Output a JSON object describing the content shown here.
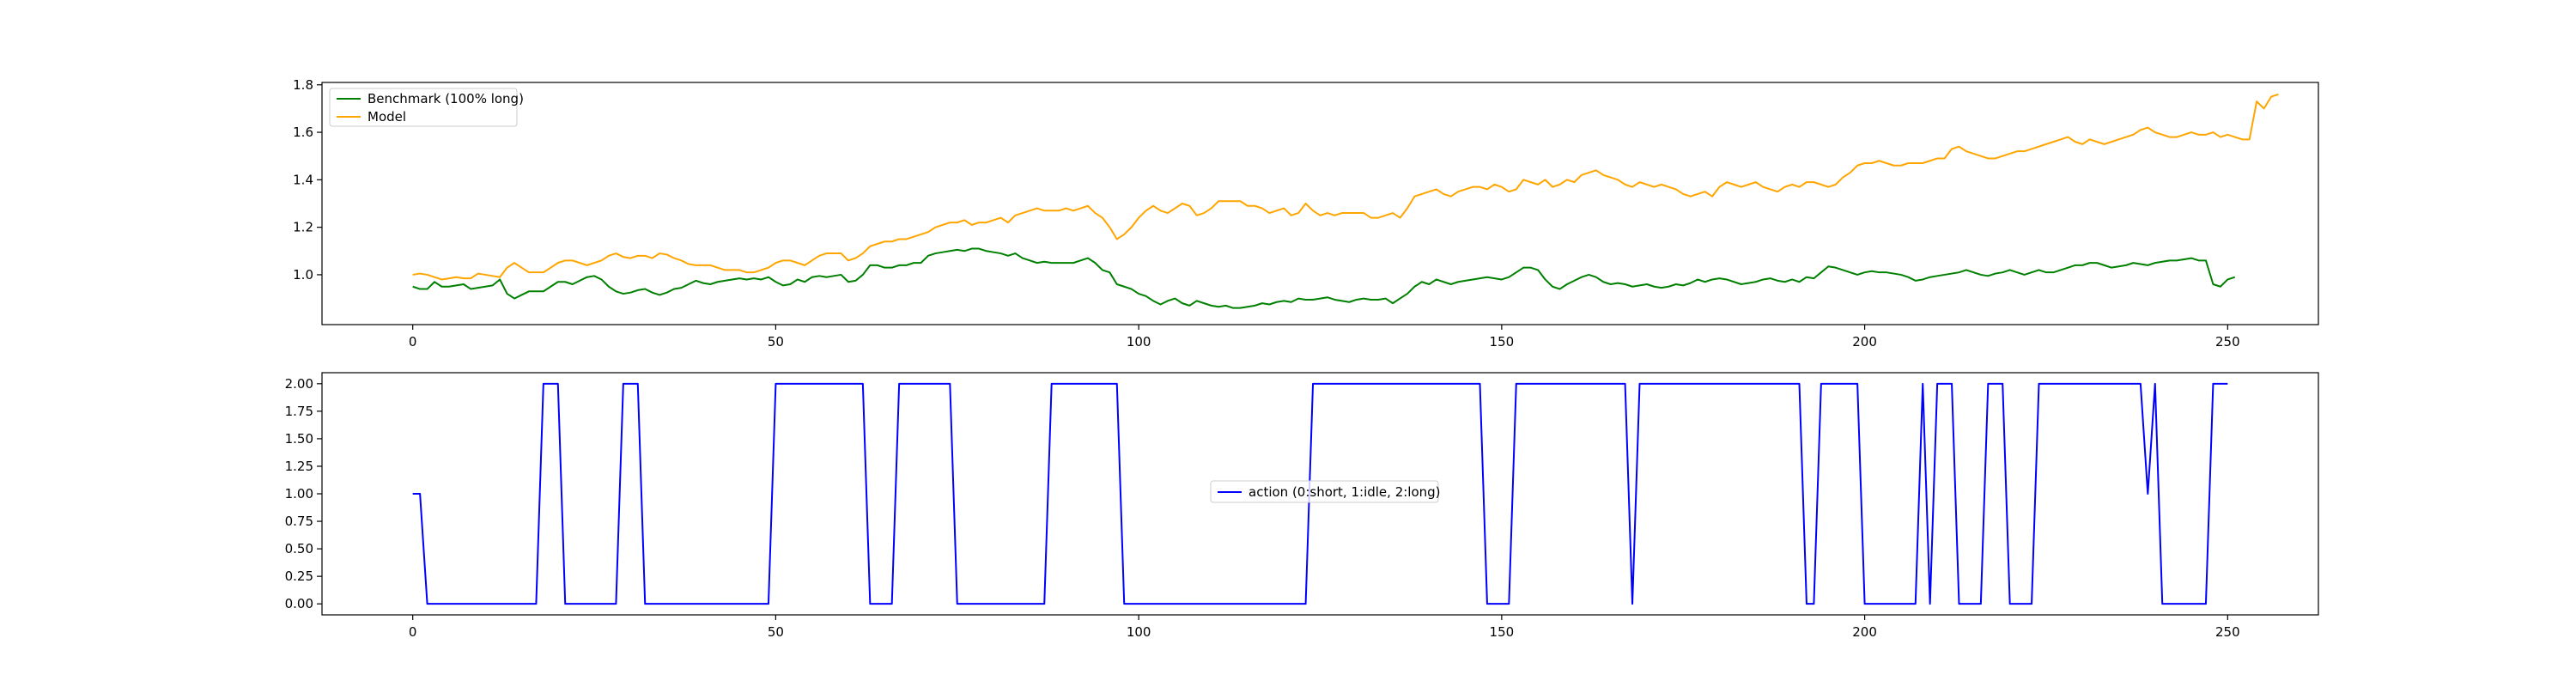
{
  "chart_data": [
    {
      "type": "line",
      "title": "",
      "xlabel": "",
      "ylabel": "",
      "xlim": [
        -12.5,
        262.5
      ],
      "ylim": [
        0.79,
        1.81
      ],
      "xticks": [
        0,
        50,
        100,
        150,
        200,
        250
      ],
      "yticks": [
        1.0,
        1.2,
        1.4,
        1.6,
        1.8
      ],
      "ytick_format": 1,
      "grid": false,
      "legend_position": "upper-left",
      "x_step": 1,
      "series": [
        {
          "name": "Benchmark (100% long)",
          "color": "#008000",
          "values": [
            0.95,
            0.94,
            0.94,
            0.97,
            0.95,
            0.95,
            0.955,
            0.96,
            0.94,
            0.945,
            0.95,
            0.955,
            0.98,
            0.92,
            0.9,
            0.915,
            0.93,
            0.93,
            0.93,
            0.95,
            0.97,
            0.97,
            0.96,
            0.975,
            0.99,
            0.995,
            0.98,
            0.95,
            0.93,
            0.92,
            0.925,
            0.935,
            0.94,
            0.925,
            0.915,
            0.925,
            0.94,
            0.945,
            0.96,
            0.975,
            0.965,
            0.96,
            0.97,
            0.975,
            0.98,
            0.985,
            0.98,
            0.985,
            0.98,
            0.99,
            0.97,
            0.955,
            0.96,
            0.98,
            0.97,
            0.99,
            0.995,
            0.99,
            0.995,
            1.0,
            0.97,
            0.975,
            1.0,
            1.04,
            1.04,
            1.03,
            1.03,
            1.04,
            1.04,
            1.05,
            1.05,
            1.08,
            1.09,
            1.095,
            1.1,
            1.105,
            1.1,
            1.11,
            1.11,
            1.1,
            1.095,
            1.09,
            1.08,
            1.09,
            1.07,
            1.06,
            1.05,
            1.055,
            1.05,
            1.05,
            1.05,
            1.05,
            1.06,
            1.07,
            1.05,
            1.02,
            1.01,
            0.96,
            0.95,
            0.94,
            0.92,
            0.91,
            0.89,
            0.875,
            0.89,
            0.9,
            0.88,
            0.87,
            0.89,
            0.88,
            0.87,
            0.865,
            0.87,
            0.86,
            0.86,
            0.865,
            0.87,
            0.88,
            0.875,
            0.885,
            0.89,
            0.885,
            0.9,
            0.895,
            0.895,
            0.9,
            0.905,
            0.895,
            0.89,
            0.885,
            0.895,
            0.9,
            0.895,
            0.895,
            0.9,
            0.88,
            0.9,
            0.92,
            0.95,
            0.97,
            0.96,
            0.98,
            0.97,
            0.96,
            0.97,
            0.975,
            0.98,
            0.985,
            0.99,
            0.985,
            0.98,
            0.99,
            1.01,
            1.03,
            1.03,
            1.02,
            0.98,
            0.95,
            0.94,
            0.96,
            0.975,
            0.99,
            1.0,
            0.99,
            0.97,
            0.96,
            0.965,
            0.96,
            0.95,
            0.955,
            0.96,
            0.95,
            0.945,
            0.95,
            0.96,
            0.955,
            0.965,
            0.98,
            0.97,
            0.98,
            0.985,
            0.98,
            0.97,
            0.96,
            0.965,
            0.97,
            0.98,
            0.985,
            0.975,
            0.97,
            0.98,
            0.97,
            0.99,
            0.985,
            1.01,
            1.035,
            1.03,
            1.02,
            1.01,
            1.0,
            1.01,
            1.015,
            1.01,
            1.01,
            1.005,
            1.0,
            0.99,
            0.975,
            0.98,
            0.99,
            0.995,
            1.0,
            1.005,
            1.01,
            1.02,
            1.01,
            1.0,
            0.995,
            1.005,
            1.01,
            1.02,
            1.01,
            1.0,
            1.01,
            1.02,
            1.01,
            1.01,
            1.02,
            1.03,
            1.04,
            1.04,
            1.05,
            1.05,
            1.04,
            1.03,
            1.035,
            1.04,
            1.05,
            1.045,
            1.04,
            1.05,
            1.055,
            1.06,
            1.06,
            1.065,
            1.07,
            1.06,
            1.06,
            0.96,
            0.95,
            0.98,
            0.99
          ]
        },
        {
          "name": "Model",
          "color": "#FFA500",
          "values": [
            1.0,
            1.005,
            1.0,
            0.99,
            0.98,
            0.985,
            0.99,
            0.985,
            0.985,
            1.005,
            1.0,
            0.995,
            0.99,
            1.03,
            1.05,
            1.03,
            1.01,
            1.01,
            1.01,
            1.03,
            1.05,
            1.06,
            1.06,
            1.05,
            1.04,
            1.05,
            1.06,
            1.08,
            1.09,
            1.075,
            1.07,
            1.08,
            1.08,
            1.07,
            1.09,
            1.085,
            1.07,
            1.06,
            1.045,
            1.04,
            1.04,
            1.04,
            1.03,
            1.02,
            1.02,
            1.02,
            1.01,
            1.01,
            1.02,
            1.03,
            1.05,
            1.06,
            1.06,
            1.05,
            1.04,
            1.06,
            1.08,
            1.09,
            1.09,
            1.09,
            1.06,
            1.07,
            1.09,
            1.12,
            1.13,
            1.14,
            1.14,
            1.15,
            1.15,
            1.16,
            1.17,
            1.18,
            1.2,
            1.21,
            1.22,
            1.22,
            1.23,
            1.21,
            1.22,
            1.22,
            1.23,
            1.24,
            1.22,
            1.25,
            1.26,
            1.27,
            1.28,
            1.27,
            1.27,
            1.27,
            1.28,
            1.27,
            1.28,
            1.29,
            1.26,
            1.24,
            1.2,
            1.15,
            1.17,
            1.2,
            1.24,
            1.27,
            1.29,
            1.27,
            1.26,
            1.28,
            1.3,
            1.29,
            1.25,
            1.26,
            1.28,
            1.31,
            1.31,
            1.31,
            1.31,
            1.29,
            1.29,
            1.28,
            1.26,
            1.27,
            1.28,
            1.25,
            1.26,
            1.3,
            1.27,
            1.25,
            1.26,
            1.25,
            1.26,
            1.26,
            1.26,
            1.26,
            1.24,
            1.24,
            1.25,
            1.26,
            1.24,
            1.28,
            1.33,
            1.34,
            1.35,
            1.36,
            1.34,
            1.33,
            1.35,
            1.36,
            1.37,
            1.37,
            1.36,
            1.38,
            1.37,
            1.35,
            1.36,
            1.4,
            1.39,
            1.38,
            1.4,
            1.37,
            1.38,
            1.4,
            1.39,
            1.42,
            1.43,
            1.44,
            1.42,
            1.41,
            1.4,
            1.38,
            1.37,
            1.39,
            1.38,
            1.37,
            1.38,
            1.37,
            1.36,
            1.34,
            1.33,
            1.34,
            1.35,
            1.33,
            1.37,
            1.39,
            1.38,
            1.37,
            1.38,
            1.39,
            1.37,
            1.36,
            1.35,
            1.37,
            1.38,
            1.37,
            1.39,
            1.39,
            1.38,
            1.37,
            1.38,
            1.41,
            1.43,
            1.46,
            1.47,
            1.47,
            1.48,
            1.47,
            1.46,
            1.46,
            1.47,
            1.47,
            1.47,
            1.48,
            1.49,
            1.49,
            1.53,
            1.54,
            1.52,
            1.51,
            1.5,
            1.49,
            1.49,
            1.5,
            1.51,
            1.52,
            1.52,
            1.53,
            1.54,
            1.55,
            1.56,
            1.57,
            1.58,
            1.56,
            1.55,
            1.57,
            1.56,
            1.55,
            1.56,
            1.57,
            1.58,
            1.59,
            1.61,
            1.62,
            1.6,
            1.59,
            1.58,
            1.58,
            1.59,
            1.6,
            1.59,
            1.59,
            1.6,
            1.58,
            1.59,
            1.58,
            1.57,
            1.57,
            1.73,
            1.7,
            1.75,
            1.76
          ]
        }
      ]
    },
    {
      "type": "line",
      "title": "",
      "xlabel": "",
      "ylabel": "",
      "xlim": [
        -12.5,
        262.5
      ],
      "ylim": [
        -0.1,
        2.1
      ],
      "xticks": [
        0,
        50,
        100,
        150,
        200,
        250
      ],
      "yticks": [
        0.0,
        0.25,
        0.5,
        0.75,
        1.0,
        1.25,
        1.5,
        1.75,
        2.0
      ],
      "ytick_format": 2,
      "grid": false,
      "legend_position": "center",
      "series": [
        {
          "name": "action (0:short, 1:idle, 2:long)",
          "color": "#0000FF",
          "points": [
            [
              0,
              1
            ],
            [
              1,
              1
            ],
            [
              2,
              0
            ],
            [
              17,
              0
            ],
            [
              18,
              2
            ],
            [
              20,
              2
            ],
            [
              21,
              0
            ],
            [
              28,
              0
            ],
            [
              29,
              2
            ],
            [
              31,
              2
            ],
            [
              32,
              0
            ],
            [
              49,
              0
            ],
            [
              50,
              2
            ],
            [
              62,
              2
            ],
            [
              63,
              0
            ],
            [
              66,
              0
            ],
            [
              67,
              2
            ],
            [
              74,
              2
            ],
            [
              75,
              0
            ],
            [
              87,
              0
            ],
            [
              88,
              2
            ],
            [
              97,
              2
            ],
            [
              98,
              0
            ],
            [
              123,
              0
            ],
            [
              124,
              2
            ],
            [
              147,
              2
            ],
            [
              148,
              0
            ],
            [
              151,
              0
            ],
            [
              152,
              2
            ],
            [
              167,
              2
            ],
            [
              168,
              0
            ],
            [
              169,
              2
            ],
            [
              191,
              2
            ],
            [
              192,
              0
            ],
            [
              193,
              0
            ],
            [
              194,
              2
            ],
            [
              199,
              2
            ],
            [
              200,
              0
            ],
            [
              207,
              0
            ],
            [
              208,
              2
            ],
            [
              209,
              0
            ],
            [
              210,
              2
            ],
            [
              212,
              2
            ],
            [
              213,
              0
            ],
            [
              216,
              0
            ],
            [
              217,
              2
            ],
            [
              219,
              2
            ],
            [
              220,
              0
            ],
            [
              223,
              0
            ],
            [
              224,
              2
            ],
            [
              238,
              2
            ],
            [
              239,
              1
            ],
            [
              240,
              2
            ],
            [
              241,
              0
            ],
            [
              247,
              0
            ],
            [
              248,
              2
            ],
            [
              250,
              2
            ]
          ]
        }
      ]
    }
  ]
}
